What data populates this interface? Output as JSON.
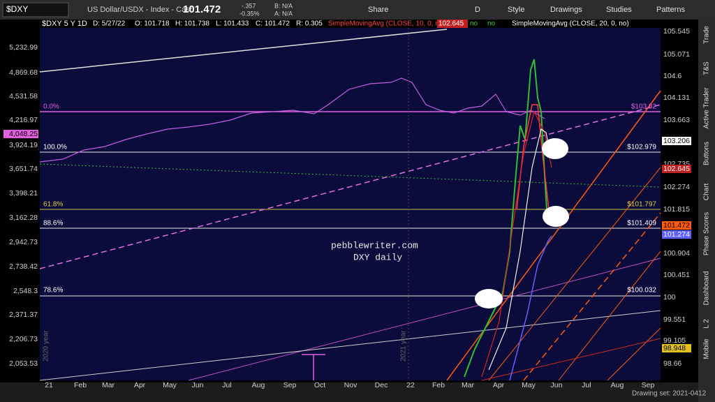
{
  "toolbar": {
    "symbol": "$DXY",
    "description": "US Dollar/USDX - Index - Cash",
    "last": "101.472",
    "change": "-.357",
    "change_pct": "-0.35%",
    "bid": "B: N/A",
    "ask": "A: N/A",
    "buttons": [
      "Share",
      "D",
      "Style",
      "Drawings",
      "Studies",
      "Patterns"
    ]
  },
  "header": {
    "symbol": "$DXY 5 Y 1D",
    "fields": [
      "D: 5/27/22",
      "O: 101.718",
      "H: 101.738",
      "L: 101.433",
      "C: 101.472",
      "R: 0.305"
    ],
    "study1": "SimpleMovingAvg (CLOSE, 10, 0, no)",
    "study1_value": "102.645",
    "flags": [
      "no",
      "no"
    ],
    "study2": "SimpleMovingAvg (CLOSE, 20, 0, no)"
  },
  "fib_levels": [
    {
      "pct": "0.0%",
      "price": "$103.82"
    },
    {
      "pct": "100.0%",
      "price": "$102.979"
    },
    {
      "pct": "61.8%",
      "price": "$101.797"
    },
    {
      "pct": "88.6%",
      "price": "$101.409"
    },
    {
      "pct": "78.6%",
      "price": "$100.032"
    }
  ],
  "left_axis": [
    "5,232.99",
    "4,869.68",
    "4,531.58",
    "4,216.97",
    "4,048.25",
    "3,924.19",
    "3,651.74",
    "3,398.21",
    "3,162.28",
    "2,942.73",
    "2,738.42",
    "2,548.3",
    "2,371.37",
    "2,206.73",
    "2,053.53"
  ],
  "right_axis": [
    "105.545",
    "105.071",
    "104.6",
    "104.131",
    "103.663",
    "103.206",
    "102.735",
    "102.645",
    "102.274",
    "101.815",
    "101.472",
    "101.274",
    "100.904",
    "100.451",
    "100",
    "99.551",
    "99.105",
    "98.948",
    "98.66"
  ],
  "x_axis": [
    "21",
    "Feb",
    "Mar",
    "Apr",
    "May",
    "Jun",
    "Jul",
    "Aug",
    "Sep",
    "Oct",
    "Nov",
    "Dec",
    "22",
    "Feb",
    "Mar",
    "Apr",
    "May",
    "Jun",
    "Jul",
    "Aug",
    "Sep"
  ],
  "year_labels": [
    "2020 year",
    "2021 year"
  ],
  "watermark": [
    "pebblewriter.com",
    "DXY daily"
  ],
  "side_tabs": [
    "Trade",
    "T&S",
    "Active Trader",
    "Buttons",
    "Chart",
    "Phase Scores",
    "Dashboard",
    "L 2",
    "Mobile"
  ],
  "footer": {
    "drawing_set": "Drawing set: 2021-0412"
  }
}
